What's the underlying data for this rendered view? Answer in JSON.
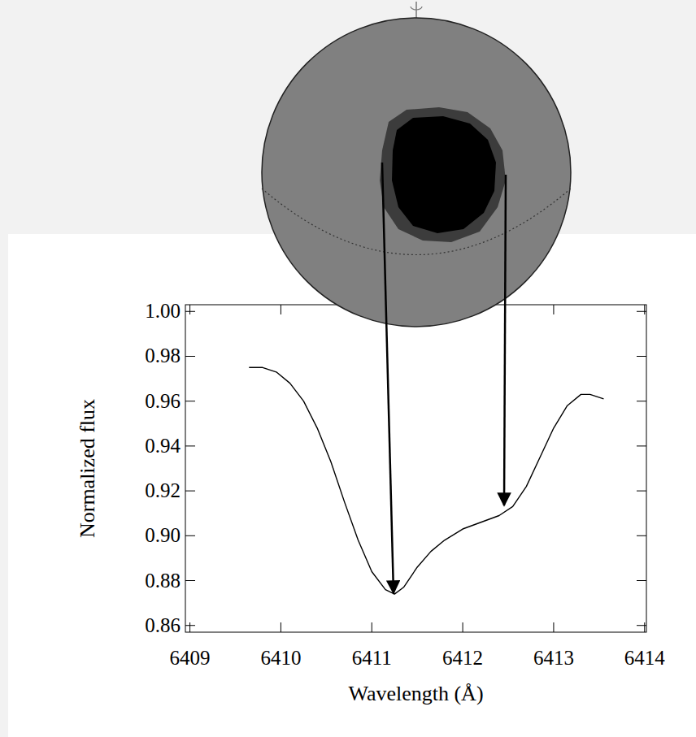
{
  "chart_data": {
    "type": "line",
    "x_label": "Wavelength (Å)",
    "y_label": "Normalized flux",
    "x": [
      6409.65,
      6409.8,
      6409.95,
      6410.1,
      6410.25,
      6410.4,
      6410.55,
      6410.7,
      6410.85,
      6411.0,
      6411.15,
      6411.25,
      6411.35,
      6411.5,
      6411.65,
      6411.8,
      6412.0,
      6412.2,
      6412.4,
      6412.55,
      6412.7,
      6412.85,
      6413.0,
      6413.15,
      6413.3,
      6413.4,
      6413.55
    ],
    "series": [
      {
        "name": null,
        "color": "#000000",
        "values": [
          0.975,
          0.975,
          0.973,
          0.968,
          0.96,
          0.948,
          0.933,
          0.915,
          0.898,
          0.884,
          0.876,
          0.874,
          0.877,
          0.886,
          0.893,
          0.898,
          0.903,
          0.906,
          0.909,
          0.913,
          0.922,
          0.935,
          0.948,
          0.958,
          0.963,
          0.963,
          0.961
        ]
      }
    ],
    "xlim": [
      6408.95,
      6414.02
    ],
    "ylim": [
      0.857,
      1.003
    ],
    "xticks": [
      6409,
      6410,
      6411,
      6412,
      6413,
      6414
    ],
    "yticks": [
      {
        "value": 0.86,
        "label": "0.86"
      },
      {
        "value": 0.88,
        "label": "0.88"
      },
      {
        "value": 0.9,
        "label": "0.90"
      },
      {
        "value": 0.92,
        "label": "0.92"
      },
      {
        "value": 0.94,
        "label": "0.94"
      },
      {
        "value": 0.96,
        "label": "0.96"
      },
      {
        "value": 0.98,
        "label": "0.98"
      },
      {
        "value": 1,
        "label": "1.00"
      }
    ],
    "grid": false
  }
}
